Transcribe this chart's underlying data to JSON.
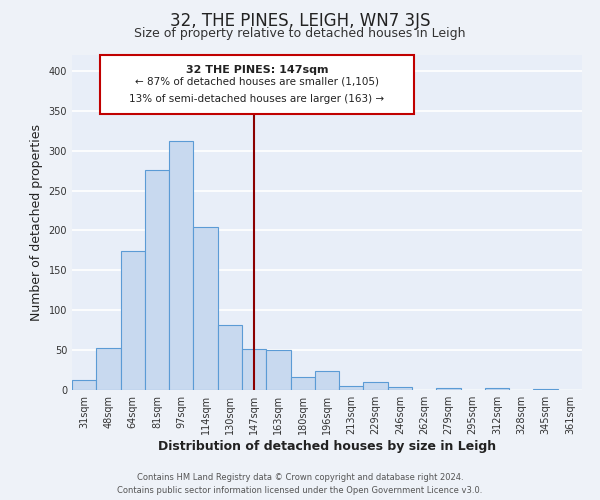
{
  "title": "32, THE PINES, LEIGH, WN7 3JS",
  "subtitle": "Size of property relative to detached houses in Leigh",
  "xlabel": "Distribution of detached houses by size in Leigh",
  "ylabel": "Number of detached properties",
  "categories": [
    "31sqm",
    "48sqm",
    "64sqm",
    "81sqm",
    "97sqm",
    "114sqm",
    "130sqm",
    "147sqm",
    "163sqm",
    "180sqm",
    "196sqm",
    "213sqm",
    "229sqm",
    "246sqm",
    "262sqm",
    "279sqm",
    "295sqm",
    "312sqm",
    "328sqm",
    "345sqm",
    "361sqm"
  ],
  "values": [
    13,
    53,
    174,
    276,
    312,
    204,
    81,
    51,
    50,
    16,
    24,
    5,
    10,
    4,
    0,
    2,
    0,
    2,
    0,
    1,
    0
  ],
  "bar_color": "#c8d9ef",
  "bar_edge_color": "#5b9bd5",
  "vline_x_index": 7,
  "vline_color": "#8b0000",
  "annotation_title": "32 THE PINES: 147sqm",
  "annotation_line1": "← 87% of detached houses are smaller (1,105)",
  "annotation_line2": "13% of semi-detached houses are larger (163) →",
  "annotation_box_edgecolor": "#c00000",
  "annotation_bg": "#ffffff",
  "ylim": [
    0,
    420
  ],
  "yticks": [
    0,
    50,
    100,
    150,
    200,
    250,
    300,
    350,
    400
  ],
  "footer_line1": "Contains HM Land Registry data © Crown copyright and database right 2024.",
  "footer_line2": "Contains public sector information licensed under the Open Government Licence v3.0.",
  "background_color": "#eef2f8",
  "plot_bg_color": "#e8eef8",
  "grid_color": "#ffffff",
  "title_fontsize": 12,
  "subtitle_fontsize": 9,
  "label_fontsize": 9,
  "tick_fontsize": 7,
  "footer_fontsize": 6,
  "ann_fontsize_title": 8,
  "ann_fontsize_lines": 7.5
}
